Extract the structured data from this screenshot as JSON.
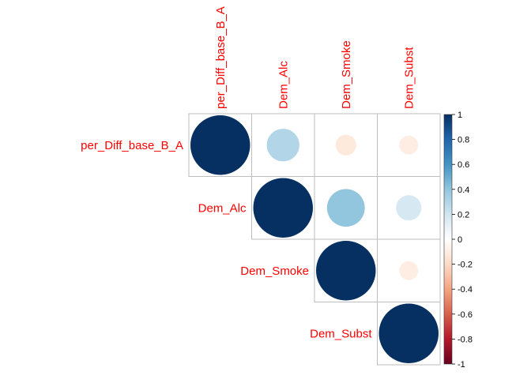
{
  "chart_data": {
    "type": "heatmap",
    "variables": [
      "per_Diff_base_B_A",
      "Dem_Alc",
      "Dem_Smoke",
      "Dem_Subst"
    ],
    "layout": "upper-triangle",
    "method": "circle",
    "matrix": [
      [
        1.0,
        0.3,
        -0.12,
        -0.1
      ],
      [
        0.3,
        1.0,
        0.4,
        0.18
      ],
      [
        -0.12,
        0.4,
        1.0,
        -0.1
      ],
      [
        -0.1,
        0.18,
        -0.1,
        1.0
      ]
    ],
    "colorbar": {
      "range": [
        -1,
        1
      ],
      "ticks": [
        "1",
        "0.8",
        "0.6",
        "0.4",
        "0.2",
        "0",
        "-0.2",
        "-0.4",
        "-0.6",
        "-0.8",
        "-1"
      ],
      "colors": [
        "#67001f",
        "#b2182b",
        "#d6604d",
        "#f4a582",
        "#fddbc7",
        "#ffffff",
        "#d1e5f0",
        "#92c5de",
        "#4393c3",
        "#2166ac",
        "#053061"
      ]
    },
    "label_color": "#ff0000",
    "grid_color": "#bebebe"
  }
}
